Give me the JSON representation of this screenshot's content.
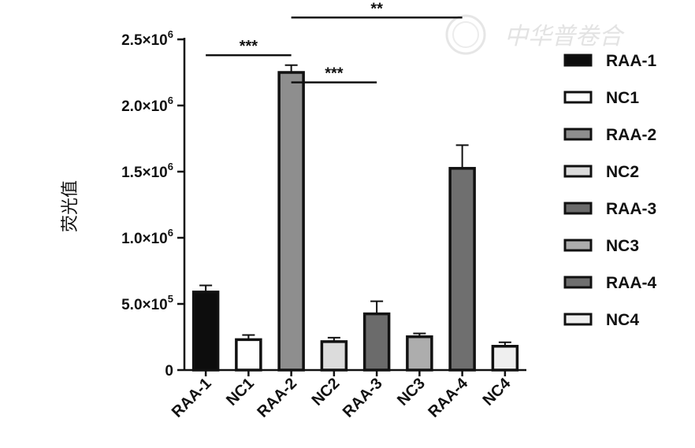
{
  "chart_data": {
    "type": "bar",
    "ylabel": "荧光值",
    "xlabel": "",
    "ylim": [
      0,
      2500000
    ],
    "yticks": [
      {
        "value": 0,
        "base": "0",
        "exp": ""
      },
      {
        "value": 500000,
        "base": "5.0×10",
        "exp": "5"
      },
      {
        "value": 1000000,
        "base": "1.0×10",
        "exp": "6"
      },
      {
        "value": 1500000,
        "base": "1.5×10",
        "exp": "6"
      },
      {
        "value": 2000000,
        "base": "2.0×10",
        "exp": "6"
      },
      {
        "value": 2500000,
        "base": "2.5×10",
        "exp": "6"
      }
    ],
    "categories": [
      "RAA-1",
      "NC1",
      "RAA-2",
      "NC2",
      "RAA-3",
      "NC3",
      "RAA-4",
      "NC4"
    ],
    "values": [
      590000,
      230000,
      2250000,
      215000,
      425000,
      252000,
      1525000,
      180000
    ],
    "errors": [
      50000,
      35000,
      55000,
      30000,
      95000,
      25000,
      175000,
      30000
    ],
    "colors": [
      "#0d0d0d",
      "#ffffff",
      "#8e8e8e",
      "#dcdcdc",
      "#6b6b6b",
      "#adadad",
      "#6f6f6f",
      "#efefef"
    ],
    "legend_position": "right",
    "significance": [
      {
        "from": 0,
        "to": 2,
        "label": "***",
        "level": 2380000
      },
      {
        "from": 2,
        "to": 4,
        "label": "***",
        "level": 2175000
      },
      {
        "from": 2,
        "to": 6,
        "label": "**",
        "level": 2665000
      }
    ],
    "grid": false
  },
  "watermark": "中华普卷合",
  "colors": {
    "axis": "#111111",
    "outline": "#111111"
  }
}
